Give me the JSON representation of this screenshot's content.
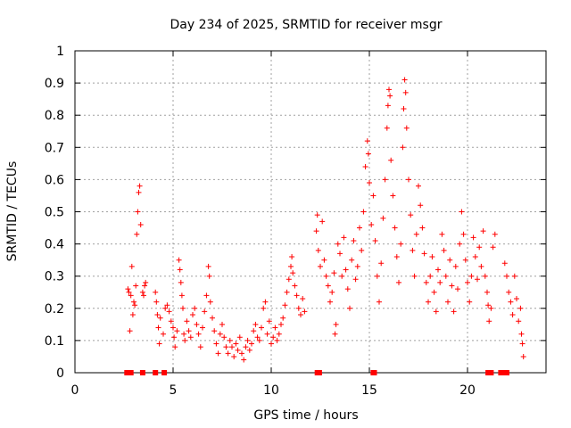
{
  "chart_data": {
    "type": "scatter",
    "marker": "plus",
    "color": "#ff0000",
    "title": "Day 234 of 2025, SRMTID for receiver msgr",
    "xlabel": "GPS time / hours",
    "ylabel": "SRMTID / TECUs",
    "xlim": [
      0,
      24
    ],
    "ylim": [
      0,
      1
    ],
    "xticks": [
      0,
      5,
      10,
      15,
      20
    ],
    "xtick_labels": [
      "0",
      "5",
      "10",
      "15",
      "20"
    ],
    "yticks": [
      0,
      0.1,
      0.2,
      0.3,
      0.4,
      0.5,
      0.6,
      0.7,
      0.8,
      0.9,
      1
    ],
    "ytick_labels": [
      "0",
      "0.1",
      "0.2",
      "0.3",
      "0.4",
      "0.5",
      "0.6",
      "0.7",
      "0.8",
      "0.9",
      "1"
    ],
    "grid": true,
    "series": [
      {
        "name": "msgr",
        "points": [
          [
            2.7,
            0.26
          ],
          [
            2.75,
            0.25
          ],
          [
            2.8,
            0.13
          ],
          [
            2.85,
            0.24
          ],
          [
            2.9,
            0.33
          ],
          [
            2.95,
            0.18
          ],
          [
            3.0,
            0.22
          ],
          [
            3.05,
            0.21
          ],
          [
            3.1,
            0.27
          ],
          [
            3.15,
            0.43
          ],
          [
            3.2,
            0.5
          ],
          [
            3.25,
            0.56
          ],
          [
            3.3,
            0.58
          ],
          [
            3.35,
            0.46
          ],
          [
            3.45,
            0.25
          ],
          [
            3.5,
            0.24
          ],
          [
            3.55,
            0.27
          ],
          [
            3.6,
            0.28
          ],
          [
            4.1,
            0.25
          ],
          [
            4.15,
            0.22
          ],
          [
            4.2,
            0.18
          ],
          [
            4.25,
            0.14
          ],
          [
            4.3,
            0.09
          ],
          [
            4.35,
            0.17
          ],
          [
            4.5,
            0.12
          ],
          [
            4.6,
            0.2
          ],
          [
            4.7,
            0.21
          ],
          [
            4.8,
            0.19
          ],
          [
            4.9,
            0.16
          ],
          [
            5.0,
            0.14
          ],
          [
            5.05,
            0.11
          ],
          [
            5.1,
            0.08
          ],
          [
            5.2,
            0.13
          ],
          [
            5.3,
            0.35
          ],
          [
            5.35,
            0.32
          ],
          [
            5.4,
            0.28
          ],
          [
            5.45,
            0.24
          ],
          [
            5.5,
            0.2
          ],
          [
            5.55,
            0.12
          ],
          [
            5.6,
            0.1
          ],
          [
            5.7,
            0.16
          ],
          [
            5.8,
            0.13
          ],
          [
            5.9,
            0.11
          ],
          [
            6.0,
            0.18
          ],
          [
            6.1,
            0.2
          ],
          [
            6.2,
            0.15
          ],
          [
            6.3,
            0.12
          ],
          [
            6.4,
            0.08
          ],
          [
            6.5,
            0.14
          ],
          [
            6.6,
            0.19
          ],
          [
            6.7,
            0.24
          ],
          [
            6.8,
            0.33
          ],
          [
            6.85,
            0.3
          ],
          [
            6.9,
            0.22
          ],
          [
            7.0,
            0.17
          ],
          [
            7.1,
            0.13
          ],
          [
            7.2,
            0.09
          ],
          [
            7.3,
            0.06
          ],
          [
            7.4,
            0.12
          ],
          [
            7.5,
            0.15
          ],
          [
            7.6,
            0.11
          ],
          [
            7.7,
            0.08
          ],
          [
            7.8,
            0.06
          ],
          [
            7.9,
            0.1
          ],
          [
            8.0,
            0.08
          ],
          [
            8.1,
            0.05
          ],
          [
            8.2,
            0.09
          ],
          [
            8.3,
            0.07
          ],
          [
            8.4,
            0.11
          ],
          [
            8.5,
            0.06
          ],
          [
            8.6,
            0.04
          ],
          [
            8.7,
            0.08
          ],
          [
            8.8,
            0.1
          ],
          [
            8.9,
            0.07
          ],
          [
            9.0,
            0.09
          ],
          [
            9.1,
            0.13
          ],
          [
            9.2,
            0.15
          ],
          [
            9.3,
            0.11
          ],
          [
            9.4,
            0.1
          ],
          [
            9.5,
            0.14
          ],
          [
            9.6,
            0.2
          ],
          [
            9.7,
            0.22
          ],
          [
            9.8,
            0.12
          ],
          [
            9.9,
            0.16
          ],
          [
            10.0,
            0.09
          ],
          [
            10.1,
            0.11
          ],
          [
            10.2,
            0.14
          ],
          [
            10.3,
            0.1
          ],
          [
            10.4,
            0.12
          ],
          [
            10.5,
            0.15
          ],
          [
            10.6,
            0.17
          ],
          [
            10.7,
            0.21
          ],
          [
            10.8,
            0.25
          ],
          [
            10.9,
            0.29
          ],
          [
            11.0,
            0.33
          ],
          [
            11.05,
            0.36
          ],
          [
            11.1,
            0.31
          ],
          [
            11.2,
            0.27
          ],
          [
            11.3,
            0.24
          ],
          [
            11.4,
            0.2
          ],
          [
            11.5,
            0.18
          ],
          [
            11.6,
            0.23
          ],
          [
            11.7,
            0.19
          ],
          [
            12.3,
            0.44
          ],
          [
            12.35,
            0.49
          ],
          [
            12.4,
            0.38
          ],
          [
            12.5,
            0.33
          ],
          [
            12.6,
            0.47
          ],
          [
            12.7,
            0.35
          ],
          [
            12.8,
            0.3
          ],
          [
            12.9,
            0.27
          ],
          [
            13.0,
            0.22
          ],
          [
            13.1,
            0.25
          ],
          [
            13.2,
            0.31
          ],
          [
            13.25,
            0.12
          ],
          [
            13.3,
            0.15
          ],
          [
            13.4,
            0.4
          ],
          [
            13.5,
            0.37
          ],
          [
            13.6,
            0.3
          ],
          [
            13.7,
            0.42
          ],
          [
            13.8,
            0.32
          ],
          [
            13.9,
            0.26
          ],
          [
            14.0,
            0.2
          ],
          [
            14.1,
            0.35
          ],
          [
            14.2,
            0.41
          ],
          [
            14.3,
            0.29
          ],
          [
            14.4,
            0.33
          ],
          [
            14.5,
            0.45
          ],
          [
            14.6,
            0.38
          ],
          [
            14.7,
            0.5
          ],
          [
            14.8,
            0.64
          ],
          [
            14.9,
            0.72
          ],
          [
            14.95,
            0.68
          ],
          [
            15.0,
            0.59
          ],
          [
            15.1,
            0.46
          ],
          [
            15.2,
            0.55
          ],
          [
            15.3,
            0.41
          ],
          [
            15.4,
            0.3
          ],
          [
            15.5,
            0.22
          ],
          [
            15.6,
            0.34
          ],
          [
            15.7,
            0.48
          ],
          [
            15.8,
            0.6
          ],
          [
            15.9,
            0.76
          ],
          [
            15.95,
            0.83
          ],
          [
            16.0,
            0.88
          ],
          [
            16.05,
            0.86
          ],
          [
            16.1,
            0.66
          ],
          [
            16.2,
            0.55
          ],
          [
            16.3,
            0.45
          ],
          [
            16.4,
            0.36
          ],
          [
            16.5,
            0.28
          ],
          [
            16.6,
            0.4
          ],
          [
            16.7,
            0.7
          ],
          [
            16.75,
            0.82
          ],
          [
            16.8,
            0.91
          ],
          [
            16.85,
            0.87
          ],
          [
            16.9,
            0.76
          ],
          [
            17.0,
            0.6
          ],
          [
            17.1,
            0.49
          ],
          [
            17.2,
            0.38
          ],
          [
            17.3,
            0.3
          ],
          [
            17.4,
            0.43
          ],
          [
            17.5,
            0.58
          ],
          [
            17.6,
            0.52
          ],
          [
            17.7,
            0.45
          ],
          [
            17.8,
            0.37
          ],
          [
            17.9,
            0.28
          ],
          [
            18.0,
            0.22
          ],
          [
            18.1,
            0.3
          ],
          [
            18.2,
            0.36
          ],
          [
            18.3,
            0.25
          ],
          [
            18.4,
            0.19
          ],
          [
            18.5,
            0.32
          ],
          [
            18.6,
            0.28
          ],
          [
            18.7,
            0.43
          ],
          [
            18.8,
            0.38
          ],
          [
            18.9,
            0.3
          ],
          [
            19.0,
            0.22
          ],
          [
            19.1,
            0.35
          ],
          [
            19.2,
            0.27
          ],
          [
            19.3,
            0.19
          ],
          [
            19.4,
            0.33
          ],
          [
            19.5,
            0.26
          ],
          [
            19.6,
            0.4
          ],
          [
            19.7,
            0.5
          ],
          [
            19.8,
            0.43
          ],
          [
            19.9,
            0.35
          ],
          [
            20.0,
            0.28
          ],
          [
            20.1,
            0.22
          ],
          [
            20.2,
            0.3
          ],
          [
            20.3,
            0.42
          ],
          [
            20.4,
            0.36
          ],
          [
            20.5,
            0.29
          ],
          [
            20.6,
            0.39
          ],
          [
            20.7,
            0.33
          ],
          [
            20.8,
            0.44
          ],
          [
            20.9,
            0.3
          ],
          [
            21.0,
            0.25
          ],
          [
            21.05,
            0.21
          ],
          [
            21.1,
            0.16
          ],
          [
            21.2,
            0.2
          ],
          [
            21.3,
            0.39
          ],
          [
            21.4,
            0.43
          ],
          [
            21.9,
            0.34
          ],
          [
            22.0,
            0.3
          ],
          [
            22.1,
            0.25
          ],
          [
            22.2,
            0.22
          ],
          [
            22.3,
            0.18
          ],
          [
            22.4,
            0.3
          ],
          [
            22.5,
            0.23
          ],
          [
            22.6,
            0.16
          ],
          [
            22.7,
            0.2
          ],
          [
            22.75,
            0.12
          ],
          [
            22.8,
            0.09
          ],
          [
            22.85,
            0.05
          ]
        ],
        "zero_points": [
          2.65,
          2.85,
          3.45,
          4.1,
          4.55,
          12.35,
          12.45,
          15.2,
          15.25,
          21.05,
          21.2,
          21.7,
          21.8,
          22.0
        ]
      }
    ]
  }
}
